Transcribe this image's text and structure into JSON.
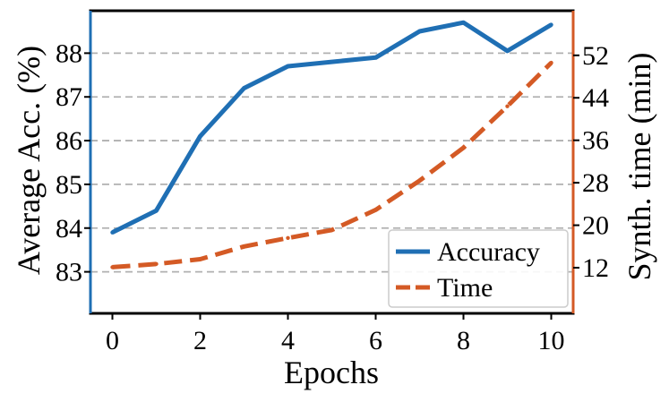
{
  "chart_data": {
    "type": "line",
    "x": [
      0,
      1,
      2,
      3,
      4,
      5,
      6,
      7,
      8,
      9,
      10
    ],
    "xlabel": "Epochs",
    "xticks": [
      "0",
      "2",
      "4",
      "6",
      "8",
      "10"
    ],
    "xlim": [
      -0.5,
      10.5
    ],
    "ylabel_left": "Average Acc. (%)",
    "yticks_left": [
      "83",
      "84",
      "85",
      "86",
      "87",
      "88"
    ],
    "ylim_left": [
      82.05,
      88.97
    ],
    "ylabel_right": "Synth. time (min)",
    "yticks_right": [
      "12",
      "20",
      "28",
      "36",
      "44",
      "52"
    ],
    "ylim_right": [
      3.4,
      60.4
    ],
    "grid": "horizontal dashed",
    "legend_position": "lower-right",
    "series": [
      {
        "name": "Accuracy",
        "axis": "left",
        "color": "#1f6fb4",
        "style": "solid",
        "values": [
          83.9,
          84.4,
          86.1,
          87.2,
          87.7,
          87.8,
          87.9,
          88.5,
          88.7,
          88.05,
          88.65
        ]
      },
      {
        "name": "Time",
        "axis": "right",
        "color": "#d45a25",
        "style": "dashed",
        "values": [
          12.1,
          12.7,
          13.6,
          16.0,
          17.6,
          19.1,
          22.9,
          28.4,
          34.6,
          42.4,
          50.6
        ]
      }
    ]
  }
}
